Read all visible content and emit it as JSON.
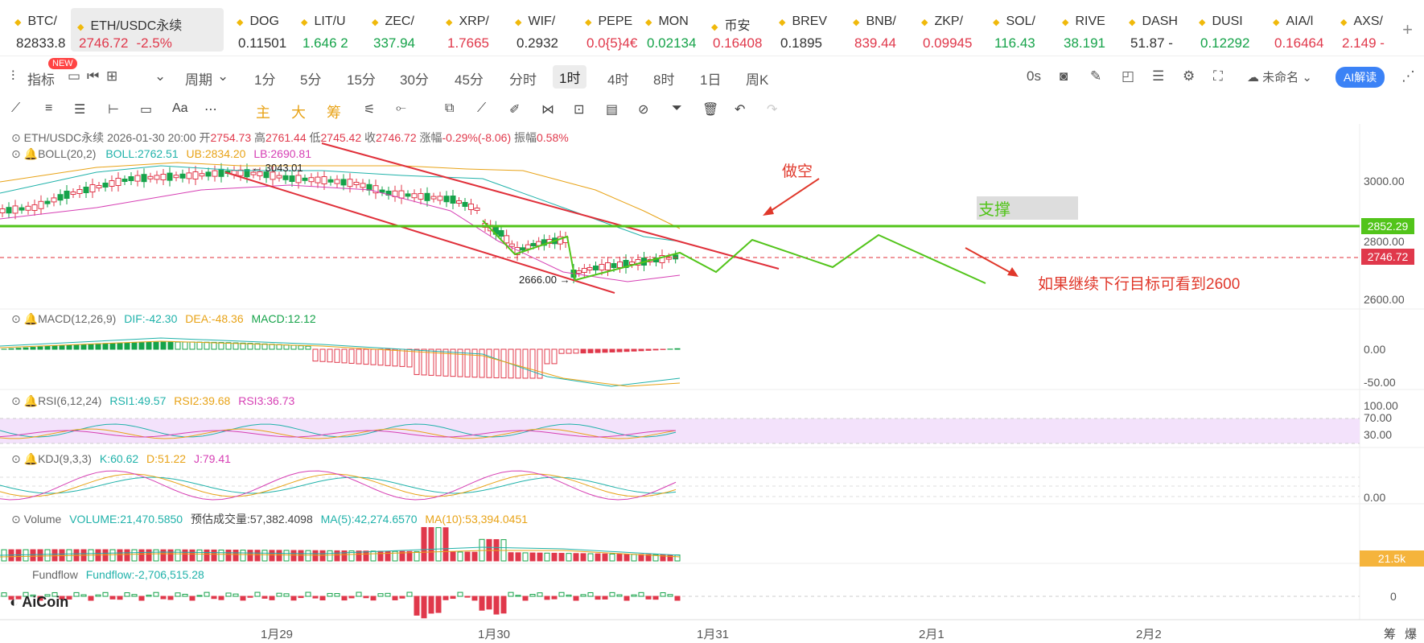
{
  "tickers": [
    {
      "name": "BTC/",
      "price": "82833.8",
      "chg": "",
      "dir": "nt"
    },
    {
      "name": "ETH/USDC永续",
      "price": "2746.72",
      "chg": "-2.5%",
      "dir": "dn"
    },
    {
      "name": "DOG",
      "price": "0.11501",
      "chg": "",
      "dir": "nt"
    },
    {
      "name": "LIT/U",
      "price": "1.646 2",
      "chg": "",
      "dir": "up"
    },
    {
      "name": "ZEC/",
      "price": "337.94",
      "chg": "",
      "dir": "up"
    },
    {
      "name": "XRP/",
      "price": "1.7665",
      "chg": "",
      "dir": "dn"
    },
    {
      "name": "WIF/",
      "price": "0.2932",
      "chg": "",
      "dir": "nt"
    },
    {
      "name": "PEPE",
      "price": "0.0{5}4€",
      "chg": "",
      "dir": "dn"
    },
    {
      "name": "MON",
      "price": "0.02134",
      "chg": "",
      "dir": "up"
    },
    {
      "name": "币安",
      "price": "0.16408",
      "chg": "",
      "dir": "dn"
    },
    {
      "name": "BREV",
      "price": "0.1895",
      "chg": "",
      "dir": "nt"
    },
    {
      "name": "BNB/",
      "price": "839.44",
      "chg": "",
      "dir": "dn"
    },
    {
      "name": "ZKP/",
      "price": "0.09945",
      "chg": "",
      "dir": "dn"
    },
    {
      "name": "SOL/",
      "price": "116.43",
      "chg": "",
      "dir": "up"
    },
    {
      "name": "RIVE",
      "price": "38.191",
      "chg": "",
      "dir": "up"
    },
    {
      "name": "DASH",
      "price": "51.87 -",
      "chg": "",
      "dir": "nt"
    },
    {
      "name": "DUSI",
      "price": "0.12292",
      "chg": "",
      "dir": "up"
    },
    {
      "name": "AIA/l",
      "price": "0.16464",
      "chg": "",
      "dir": "dn"
    },
    {
      "name": "AXS/",
      "price": "2.149 -",
      "chg": "",
      "dir": "dn"
    }
  ],
  "toolbar": {
    "indicator": "指标",
    "new_badge": "NEW",
    "period": "周期",
    "timeframes": [
      "1分",
      "5分",
      "15分",
      "30分",
      "45分",
      "分时",
      "1时",
      "4时",
      "8时",
      "1日",
      "周K"
    ],
    "selected_tf": "1时",
    "countdown": "0s",
    "layout_name": "未命名",
    "ai_label": "AI解读"
  },
  "drawing_tools": {
    "zhu": "主",
    "da": "大",
    "chou": "筹"
  },
  "chart": {
    "title": "ETH/USDC永续",
    "datetime": "2026-01-30 20:00",
    "open_label": "开",
    "open": "2754.73",
    "high_label": "高",
    "high": "2761.44",
    "low_label": "低",
    "low": "2745.42",
    "close_label": "收",
    "close": "2746.72",
    "change_label": "涨幅",
    "change": "-0.29%(-8.06)",
    "amp_label": "振幅",
    "amp": "0.58%",
    "boll": "BOLL(20,2)",
    "boll_val": "BOLL:2762.51",
    "ub": "UB:2834.20",
    "lb": "LB:2690.81",
    "high_mark": "3043.01",
    "low_mark": "2666.00",
    "annot_short": "做空",
    "annot_support": "支撑",
    "annot_target": "如果继续下行目标可看到2600",
    "price_axis": [
      "3000.00",
      "2800.00",
      "2600.00"
    ],
    "support_tag": "2852.29",
    "last_tag": "2746.72",
    "colors": {
      "up": "#16a34a",
      "down": "#e0384b",
      "support": "#52c41a",
      "channel": "#e0303a"
    }
  },
  "macd": {
    "name": "MACD(12,26,9)",
    "dif": "DIF:-42.30",
    "dea": "DEA:-48.36",
    "macd": "MACD:12.12",
    "axis": [
      "0.00",
      "-50.00"
    ]
  },
  "rsi": {
    "name": "RSI(6,12,24)",
    "r1": "RSI1:49.57",
    "r2": "RSI2:39.68",
    "r3": "RSI3:36.73",
    "axis": [
      "100.00",
      "70.00",
      "30.00"
    ]
  },
  "kdj": {
    "name": "KDJ(9,3,3)",
    "k": "K:60.62",
    "d": "D:51.22",
    "j": "J:79.41",
    "axis": [
      "0.00"
    ]
  },
  "volume": {
    "name": "Volume",
    "vol": "VOLUME:21,470.5850",
    "est": "预估成交量:57,382.4098",
    "ma5": "MA(5):42,274.6570",
    "ma10": "MA(10):53,394.0451",
    "tag": "21.5k"
  },
  "fundflow": {
    "name": "Fundflow",
    "val": "Fundflow:-2,706,515.28",
    "axis": "0"
  },
  "logo": "AiCoin",
  "xaxis": [
    "1月29",
    "1月30",
    "1月31",
    "2月1",
    "2月2"
  ],
  "footer": {
    "chou": "筹",
    "bao": "爆"
  }
}
